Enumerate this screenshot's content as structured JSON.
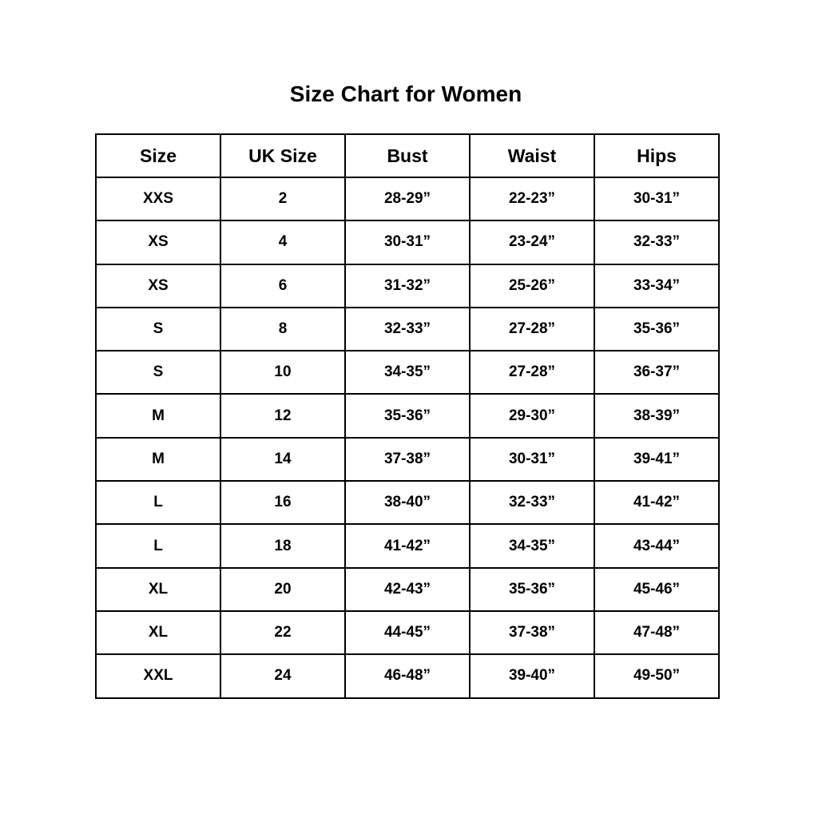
{
  "title": "Size Chart for Women",
  "table": {
    "headers": [
      "Size",
      "UK Size",
      "Bust",
      "Waist",
      "Hips"
    ],
    "rows": [
      [
        "XXS",
        "2",
        "28-29”",
        "22-23”",
        "30-31”"
      ],
      [
        "XS",
        "4",
        "30-31”",
        "23-24”",
        "32-33”"
      ],
      [
        "XS",
        "6",
        "31-32”",
        "25-26”",
        "33-34”"
      ],
      [
        "S",
        "8",
        "32-33”",
        "27-28”",
        "35-36”"
      ],
      [
        "S",
        "10",
        "34-35”",
        "27-28”",
        "36-37”"
      ],
      [
        "M",
        "12",
        "35-36”",
        "29-30”",
        "38-39”"
      ],
      [
        "M",
        "14",
        "37-38”",
        "30-31”",
        "39-41”"
      ],
      [
        "L",
        "16",
        "38-40”",
        "32-33”",
        "41-42”"
      ],
      [
        "L",
        "18",
        "41-42”",
        "34-35”",
        "43-44”"
      ],
      [
        "XL",
        "20",
        "42-43”",
        "35-36”",
        "45-46”"
      ],
      [
        "XL",
        "22",
        "44-45”",
        "37-38”",
        "47-48”"
      ],
      [
        "XXL",
        "24",
        "46-48”",
        "39-40”",
        "49-50”"
      ]
    ]
  }
}
